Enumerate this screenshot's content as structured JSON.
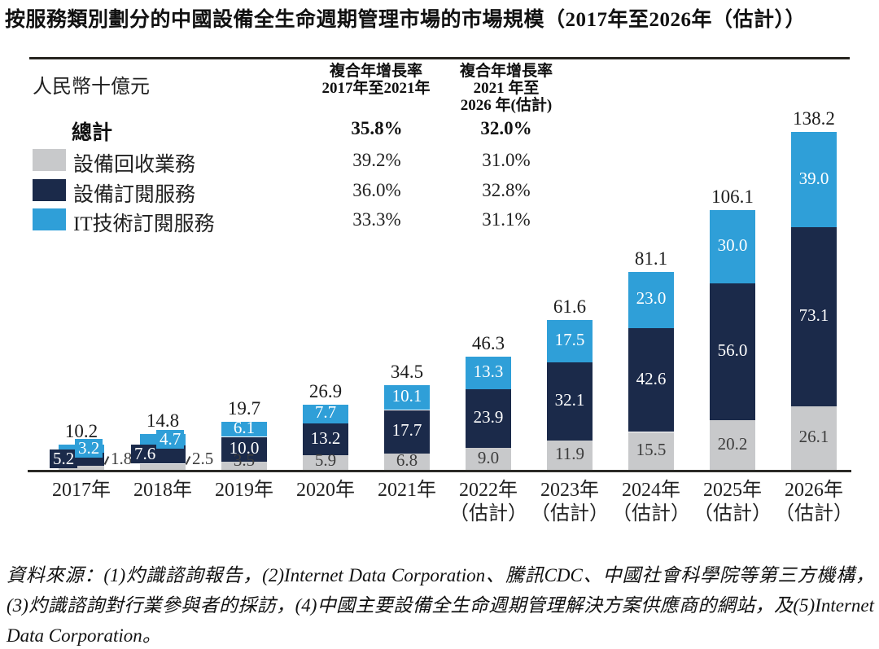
{
  "title": "按服務類別劃分的中國設備全生命週期管理市場的市場規模（2017年至2026年（估計））",
  "chart_data": {
    "type": "bar",
    "stacked": true,
    "unit_label": "人民幣十億元",
    "cagr_col1_header": [
      "複合年增長率",
      "2017年至2021年"
    ],
    "cagr_col2_header": [
      "複合年增長率",
      "2021 年至",
      "2026 年(估計)"
    ],
    "total_row": {
      "label": "總計",
      "cagr_2017_2021": "35.8%",
      "cagr_2021_2026": "32.0%"
    },
    "categories": [
      "2017年",
      "2018年",
      "2019年",
      "2020年",
      "2021年",
      "2022年",
      "2023年",
      "2024年",
      "2025年",
      "2026年"
    ],
    "estimate_note": "（估計）",
    "estimated_from_index": 5,
    "series": [
      {
        "name": "設備回收業務",
        "color": "#c8c9cb",
        "label_color": "#3d3d3d",
        "cagr_2017_2021": "39.2%",
        "cagr_2021_2026": "31.0%",
        "values": [
          1.8,
          2.5,
          3.5,
          5.9,
          6.8,
          9.0,
          11.9,
          15.5,
          20.2,
          26.1
        ]
      },
      {
        "name": "設備訂閱服務",
        "color": "#1b2a4a",
        "label_color": "#ffffff",
        "cagr_2017_2021": "36.0%",
        "cagr_2021_2026": "32.8%",
        "values": [
          5.2,
          7.6,
          10.0,
          13.2,
          17.7,
          23.9,
          32.1,
          42.6,
          56.0,
          73.1
        ]
      },
      {
        "name": "IT技術訂閱服務",
        "color": "#2f9fd8",
        "label_color": "#ffffff",
        "cagr_2017_2021": "33.3%",
        "cagr_2021_2026": "31.1%",
        "values": [
          3.2,
          4.7,
          6.1,
          7.7,
          10.1,
          13.3,
          17.5,
          23.0,
          30.0,
          39.0
        ]
      }
    ],
    "totals": [
      10.2,
      14.8,
      19.7,
      26.9,
      34.5,
      46.3,
      61.6,
      81.1,
      106.1,
      138.2
    ],
    "ylim": [
      0,
      140
    ],
    "grid": false,
    "legend_position": "top-left"
  },
  "source_note_lines": [
    "資料來源：(1)灼識諮詢報告，(2)Internet Data Corporation、騰訊CDC、中國社會科學院等第三方機構，",
    "(3)灼識諮詢對行業參與者的採訪，(4)中國主要設備全生命週期管理解決方案供應商的網站，及(5)Internet",
    "Data Corporation。"
  ]
}
